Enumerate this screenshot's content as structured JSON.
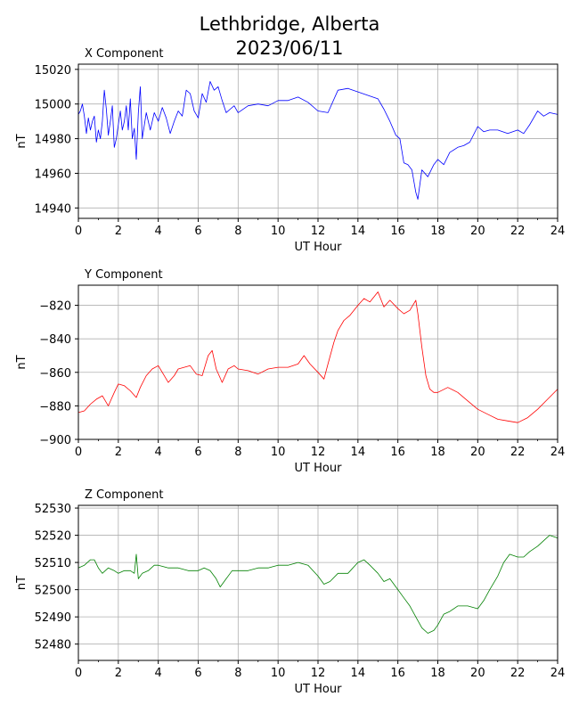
{
  "figure": {
    "title_line1": "Lethbridge, Alberta",
    "title_line2": "2023/06/11"
  },
  "chart_data": [
    {
      "type": "line",
      "title": "X Component",
      "xlabel": "UT Hour",
      "ylabel": "nT",
      "xlim": [
        0,
        24
      ],
      "ylim": [
        14934,
        15023
      ],
      "xticks": [
        "0",
        "2",
        "4",
        "6",
        "8",
        "10",
        "12",
        "14",
        "16",
        "18",
        "20",
        "22",
        "24"
      ],
      "yticks": [
        "14940",
        "14960",
        "14980",
        "15000",
        "15020"
      ],
      "grid": true,
      "series": [
        {
          "color": "#0000ff",
          "x": [
            0,
            0.1,
            0.2,
            0.3,
            0.4,
            0.5,
            0.6,
            0.7,
            0.8,
            0.9,
            1.0,
            1.1,
            1.2,
            1.3,
            1.4,
            1.5,
            1.6,
            1.7,
            1.8,
            1.9,
            2.0,
            2.1,
            2.2,
            2.3,
            2.4,
            2.5,
            2.6,
            2.7,
            2.8,
            2.9,
            3.0,
            3.1,
            3.2,
            3.4,
            3.6,
            3.8,
            4.0,
            4.2,
            4.4,
            4.6,
            4.8,
            5.0,
            5.2,
            5.4,
            5.6,
            5.8,
            6.0,
            6.2,
            6.4,
            6.6,
            6.8,
            7.0,
            7.2,
            7.4,
            7.6,
            7.8,
            8.0,
            8.5,
            9.0,
            9.5,
            10.0,
            10.5,
            11.0,
            11.5,
            12.0,
            12.5,
            13.0,
            13.5,
            14.0,
            14.5,
            15.0,
            15.3,
            15.6,
            15.9,
            16.1,
            16.3,
            16.5,
            16.7,
            16.9,
            17.0,
            17.2,
            17.5,
            17.8,
            18.0,
            18.3,
            18.6,
            19.0,
            19.3,
            19.6,
            20.0,
            20.3,
            20.6,
            21.0,
            21.5,
            22.0,
            22.3,
            22.6,
            23.0,
            23.3,
            23.6,
            24.0
          ],
          "y": [
            14994,
            14996,
            15000,
            14993,
            14983,
            14992,
            14985,
            14990,
            14993,
            14978,
            14985,
            14980,
            14990,
            15008,
            14997,
            14982,
            14990,
            14999,
            14975,
            14980,
            14988,
            14996,
            14985,
            14990,
            14999,
            14985,
            15003,
            14980,
            14986,
            14968,
            14995,
            15010,
            14980,
            14995,
            14985,
            14995,
            14990,
            14998,
            14992,
            14983,
            14990,
            14996,
            14993,
            15008,
            15006,
            14996,
            14992,
            15006,
            15001,
            15013,
            15008,
            15010,
            15002,
            14995,
            14997,
            14999,
            14995,
            14999,
            15000,
            14999,
            15002,
            15002,
            15004,
            15001,
            14996,
            14995,
            15008,
            15009,
            15007,
            15005,
            15003,
            14997,
            14990,
            14982,
            14980,
            14966,
            14965,
            14962,
            14949,
            14945,
            14962,
            14958,
            14965,
            14968,
            14965,
            14972,
            14975,
            14976,
            14978,
            14987,
            14984,
            14985,
            14985,
            14983,
            14985,
            14983,
            14988,
            14996,
            14993,
            14995,
            14994
          ]
        }
      ]
    },
    {
      "type": "line",
      "title": "Y Component",
      "xlabel": "UT Hour",
      "ylabel": "nT",
      "xlim": [
        0,
        24
      ],
      "ylim": [
        -900,
        -808
      ],
      "xticks": [
        "0",
        "2",
        "4",
        "6",
        "8",
        "10",
        "12",
        "14",
        "16",
        "18",
        "20",
        "22",
        "24"
      ],
      "yticks": [
        "−820",
        "−840",
        "−860",
        "−880",
        "−900"
      ],
      "grid": true,
      "series": [
        {
          "color": "#ff0000",
          "x": [
            0,
            0.3,
            0.6,
            0.9,
            1.2,
            1.5,
            1.8,
            2.0,
            2.3,
            2.6,
            2.9,
            3.1,
            3.4,
            3.7,
            4.0,
            4.2,
            4.5,
            4.8,
            5.0,
            5.3,
            5.6,
            5.9,
            6.2,
            6.5,
            6.7,
            6.9,
            7.2,
            7.5,
            7.8,
            8.0,
            8.5,
            9.0,
            9.5,
            10.0,
            10.5,
            11.0,
            11.3,
            11.6,
            12.0,
            12.3,
            12.5,
            12.8,
            13.0,
            13.3,
            13.6,
            14.0,
            14.3,
            14.6,
            15.0,
            15.3,
            15.6,
            16.0,
            16.3,
            16.6,
            16.9,
            17.0,
            17.2,
            17.4,
            17.6,
            17.8,
            18.0,
            18.5,
            19.0,
            19.5,
            20.0,
            20.5,
            21.0,
            21.5,
            22.0,
            22.5,
            23.0,
            23.5,
            24.0
          ],
          "y": [
            -884,
            -883,
            -879,
            -876,
            -874,
            -880,
            -872,
            -867,
            -868,
            -871,
            -875,
            -869,
            -862,
            -858,
            -856,
            -860,
            -866,
            -862,
            -858,
            -857,
            -856,
            -861,
            -862,
            -850,
            -847,
            -858,
            -866,
            -858,
            -856,
            -858,
            -859,
            -861,
            -858,
            -857,
            -857,
            -855,
            -850,
            -855,
            -860,
            -864,
            -855,
            -842,
            -835,
            -829,
            -826,
            -820,
            -816,
            -818,
            -812,
            -821,
            -817,
            -822,
            -825,
            -823,
            -817,
            -825,
            -845,
            -862,
            -870,
            -872,
            -872,
            -869,
            -872,
            -877,
            -882,
            -885,
            -888,
            -889,
            -890,
            -887,
            -882,
            -876,
            -870
          ]
        }
      ]
    },
    {
      "type": "line",
      "title": "Z Component",
      "xlabel": "UT Hour",
      "ylabel": "nT",
      "xlim": [
        0,
        24
      ],
      "ylim": [
        52474,
        52531
      ],
      "xticks": [
        "0",
        "2",
        "4",
        "6",
        "8",
        "10",
        "12",
        "14",
        "16",
        "18",
        "20",
        "22",
        "24"
      ],
      "yticks": [
        "52480",
        "52490",
        "52500",
        "52510",
        "52520",
        "52530"
      ],
      "grid": true,
      "series": [
        {
          "color": "#008000",
          "x": [
            0,
            0.3,
            0.6,
            0.8,
            1.0,
            1.2,
            1.5,
            1.8,
            2.0,
            2.3,
            2.6,
            2.8,
            2.9,
            3.0,
            3.2,
            3.5,
            3.8,
            4.0,
            4.5,
            5.0,
            5.5,
            6.0,
            6.3,
            6.6,
            6.9,
            7.1,
            7.4,
            7.7,
            8.0,
            8.5,
            9.0,
            9.5,
            10.0,
            10.5,
            11.0,
            11.5,
            12.0,
            12.3,
            12.6,
            13.0,
            13.5,
            14.0,
            14.3,
            14.6,
            15.0,
            15.3,
            15.6,
            16.0,
            16.3,
            16.6,
            16.9,
            17.2,
            17.5,
            17.8,
            18.0,
            18.3,
            18.6,
            19.0,
            19.5,
            20.0,
            20.3,
            20.6,
            21.0,
            21.3,
            21.6,
            22.0,
            22.3,
            22.6,
            23.0,
            23.3,
            23.6,
            24.0
          ],
          "y": [
            52508,
            52509,
            52511,
            52511,
            52508,
            52506,
            52508,
            52507,
            52506,
            52507,
            52507,
            52506,
            52513,
            52504,
            52506,
            52507,
            52509,
            52509,
            52508,
            52508,
            52507,
            52507,
            52508,
            52507,
            52504,
            52501,
            52504,
            52507,
            52507,
            52507,
            52508,
            52508,
            52509,
            52509,
            52510,
            52509,
            52505,
            52502,
            52503,
            52506,
            52506,
            52510,
            52511,
            52509,
            52506,
            52503,
            52504,
            52500,
            52497,
            52494,
            52490,
            52486,
            52484,
            52485,
            52487,
            52491,
            52492,
            52494,
            52494,
            52493,
            52496,
            52500,
            52505,
            52510,
            52513,
            52512,
            52512,
            52514,
            52516,
            52518,
            52520,
            52519
          ]
        }
      ]
    }
  ]
}
